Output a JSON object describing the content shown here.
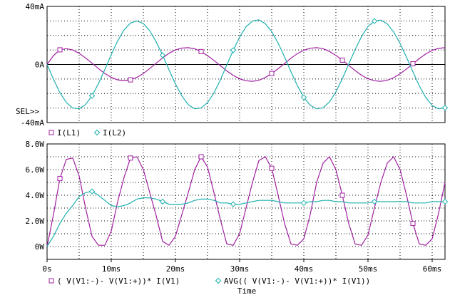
{
  "chart_data": [
    {
      "type": "line",
      "title": "",
      "xlabel": "",
      "ylabel": "",
      "xlim": [
        0,
        62
      ],
      "ylim": [
        -40,
        40
      ],
      "yticks": [
        "40mA",
        "0A",
        "-40mA"
      ],
      "sel_marker": "SEL>>",
      "grid": true,
      "legend_position": "bottom-left",
      "legend": [
        {
          "name": "I(L1)",
          "marker": "square"
        },
        {
          "name": "I(L2)",
          "marker": "diamond"
        }
      ],
      "series": [
        {
          "name": "I(L1)",
          "color": "#a020a0",
          "marker": "square",
          "x": [
            0,
            1,
            2,
            3,
            4,
            5,
            6,
            7,
            8,
            9,
            10,
            11,
            12,
            13,
            14,
            15,
            16,
            17,
            18,
            19,
            20,
            21,
            22,
            23,
            24,
            25,
            26,
            27,
            28,
            29,
            30,
            31,
            32,
            33,
            34,
            35,
            36,
            37,
            38,
            39,
            40,
            41,
            42,
            43,
            44,
            45,
            46,
            47,
            48,
            49,
            50,
            51,
            52,
            53,
            54,
            55,
            56,
            57,
            58,
            59,
            60,
            61,
            62
          ],
          "y": [
            0,
            6.2,
            10.1,
            10.9,
            10,
            7.7,
            4.5,
            0.9,
            -2.8,
            -6.2,
            -8.9,
            -10.6,
            -11.1,
            -10.6,
            -8.9,
            -6.2,
            -2.8,
            0.9,
            4.5,
            7.7,
            10,
            11.3,
            11.6,
            10.8,
            8.9,
            6.1,
            2.8,
            -0.8,
            -4.4,
            -7.5,
            -9.9,
            -11.2,
            -11.6,
            -10.9,
            -9,
            -6.2,
            -2.9,
            0.7,
            4.3,
            7.5,
            9.8,
            11.2,
            11.6,
            10.9,
            9,
            6.3,
            3,
            -0.6,
            -4.2,
            -7.4,
            -9.8,
            -11.2,
            -11.6,
            -10.9,
            -9.1,
            -6.4,
            -3.1,
            0.5,
            4.1,
            7.3,
            9.7,
            11.1,
            11.6
          ]
        },
        {
          "name": "I(L2)",
          "color": "#20b0b0",
          "marker": "diamond",
          "x": [
            0,
            1,
            2,
            3,
            4,
            5,
            6,
            7,
            8,
            9,
            10,
            11,
            12,
            13,
            14,
            15,
            16,
            17,
            18,
            19,
            20,
            21,
            22,
            23,
            24,
            25,
            26,
            27,
            28,
            29,
            30,
            31,
            32,
            33,
            34,
            35,
            36,
            37,
            38,
            39,
            40,
            41,
            42,
            43,
            44,
            45,
            46,
            47,
            48,
            49,
            50,
            51,
            52,
            53,
            54,
            55,
            56,
            57,
            58,
            59,
            60,
            61,
            62
          ],
          "y": [
            0,
            -10.2,
            -19.4,
            -26.2,
            -30,
            -30.5,
            -27.6,
            -21.6,
            -13.2,
            -3.5,
            6.8,
            16.3,
            23.8,
            28.5,
            30,
            28.2,
            23.2,
            15.6,
            6.4,
            -3.7,
            -13.4,
            -21.7,
            -27.7,
            -30.5,
            -30,
            -26.3,
            -19.6,
            -10.6,
            -0.4,
            9.8,
            18.9,
            25.9,
            29.9,
            30.7,
            28.1,
            22.6,
            14.7,
            5.2,
            -5,
            -14.6,
            -22.6,
            -28.1,
            -30.6,
            -29.8,
            -25.8,
            -18.9,
            -9.8,
            0.3,
            10.3,
            19.3,
            26.1,
            29.9,
            30.6,
            28,
            22.4,
            14.5,
            5,
            -5.1,
            -14.7,
            -22.7,
            -28.2,
            -30.6,
            -29.8
          ]
        }
      ]
    },
    {
      "type": "line",
      "title": "",
      "xlabel": "Time",
      "ylabel": "",
      "xlim": [
        0,
        62
      ],
      "ylim": [
        -1,
        8
      ],
      "yticks": [
        "8.0W",
        "6.0W",
        "4.0W",
        "2.0W",
        "0W"
      ],
      "xticks": [
        "0s",
        "10ms",
        "20ms",
        "30ms",
        "40ms",
        "50ms",
        "60ms"
      ],
      "grid": true,
      "legend_position": "bottom",
      "legend": [
        {
          "name": "( V(V1:-)- V(V1:+))* I(V1)",
          "marker": "square"
        },
        {
          "name": "AVG(( V(V1:-)- V(V1:+))* I(V1))",
          "marker": "diamond"
        }
      ],
      "series": [
        {
          "name": "( V(V1:-)- V(V1:+))* I(V1)",
          "color": "#a020a0",
          "marker": "square",
          "x": [
            0,
            1,
            2,
            3,
            4,
            5,
            6,
            7,
            8,
            9,
            10,
            11,
            12,
            13,
            14,
            15,
            16,
            17,
            18,
            19,
            20,
            21,
            22,
            23,
            24,
            25,
            26,
            27,
            28,
            29,
            30,
            31,
            32,
            33,
            34,
            35,
            36,
            37,
            38,
            39,
            40,
            41,
            42,
            43,
            44,
            45,
            46,
            47,
            48,
            49,
            50,
            51,
            52,
            53,
            54,
            55,
            56,
            57,
            58,
            59,
            60,
            61,
            62
          ],
          "y": [
            0,
            2.5,
            5.3,
            6.8,
            6.9,
            5.5,
            3,
            0.8,
            0.1,
            0.1,
            1.2,
            3.5,
            5.4,
            6.9,
            7,
            6,
            4.2,
            2.4,
            0.4,
            0.1,
            0.8,
            2.5,
            4.2,
            6,
            7,
            6.2,
            4.2,
            2.1,
            0.2,
            0.1,
            1,
            3,
            5,
            6.7,
            7,
            6.1,
            4,
            1.8,
            0.2,
            0.1,
            0.6,
            2.5,
            5,
            6.5,
            7,
            6,
            4,
            1.8,
            0.2,
            0.1,
            0.9,
            3,
            5,
            6.5,
            7,
            6,
            4,
            1.8,
            0.2,
            0.1,
            0.6,
            2.6,
            5
          ]
        },
        {
          "name": "AVG(( V(V1:-)- V(V1:+))* I(V1))",
          "color": "#20b0b0",
          "marker": "diamond",
          "x": [
            0,
            1,
            2,
            3,
            4,
            5,
            6,
            7,
            8,
            9,
            10,
            11,
            12,
            13,
            14,
            15,
            16,
            17,
            18,
            19,
            20,
            21,
            22,
            23,
            24,
            25,
            26,
            27,
            28,
            29,
            30,
            31,
            32,
            33,
            34,
            35,
            36,
            37,
            38,
            39,
            40,
            41,
            42,
            43,
            44,
            45,
            46,
            47,
            48,
            49,
            50,
            51,
            52,
            53,
            54,
            55,
            56,
            57,
            58,
            59,
            60,
            61,
            62
          ],
          "y": [
            0,
            0.8,
            1.8,
            2.6,
            3.2,
            3.9,
            4.2,
            4.3,
            4,
            3.6,
            3.2,
            3.1,
            3.2,
            3.4,
            3.7,
            3.8,
            3.8,
            3.7,
            3.5,
            3.3,
            3.3,
            3.3,
            3.4,
            3.6,
            3.7,
            3.7,
            3.6,
            3.4,
            3.4,
            3.3,
            3.3,
            3.4,
            3.5,
            3.6,
            3.6,
            3.6,
            3.5,
            3.4,
            3.4,
            3.4,
            3.4,
            3.5,
            3.5,
            3.6,
            3.6,
            3.5,
            3.5,
            3.4,
            3.4,
            3.4,
            3.4,
            3.5,
            3.5,
            3.5,
            3.5,
            3.5,
            3.5,
            3.4,
            3.4,
            3.4,
            3.5,
            3.5,
            3.5
          ]
        }
      ]
    }
  ]
}
